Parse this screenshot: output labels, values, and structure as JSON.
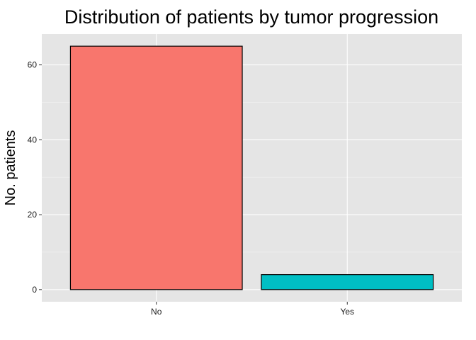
{
  "chart_data": {
    "type": "bar",
    "title": "Distribution of patients by tumor progression",
    "xlabel": "",
    "ylabel": "No. patients",
    "categories": [
      "No",
      "Yes"
    ],
    "values": [
      65,
      4
    ],
    "colors": [
      "#F8766D",
      "#00BFC4"
    ],
    "bar_outline_color": "#000000",
    "ylim": [
      -3.25,
      68.25
    ],
    "yticks": [
      0,
      20,
      40,
      60
    ],
    "ytick_labels": [
      "0",
      "20",
      "40",
      "60"
    ],
    "grid": true,
    "panel_background": "#E5E5E5",
    "grid_color": "#FFFFFF",
    "legend": "none"
  }
}
